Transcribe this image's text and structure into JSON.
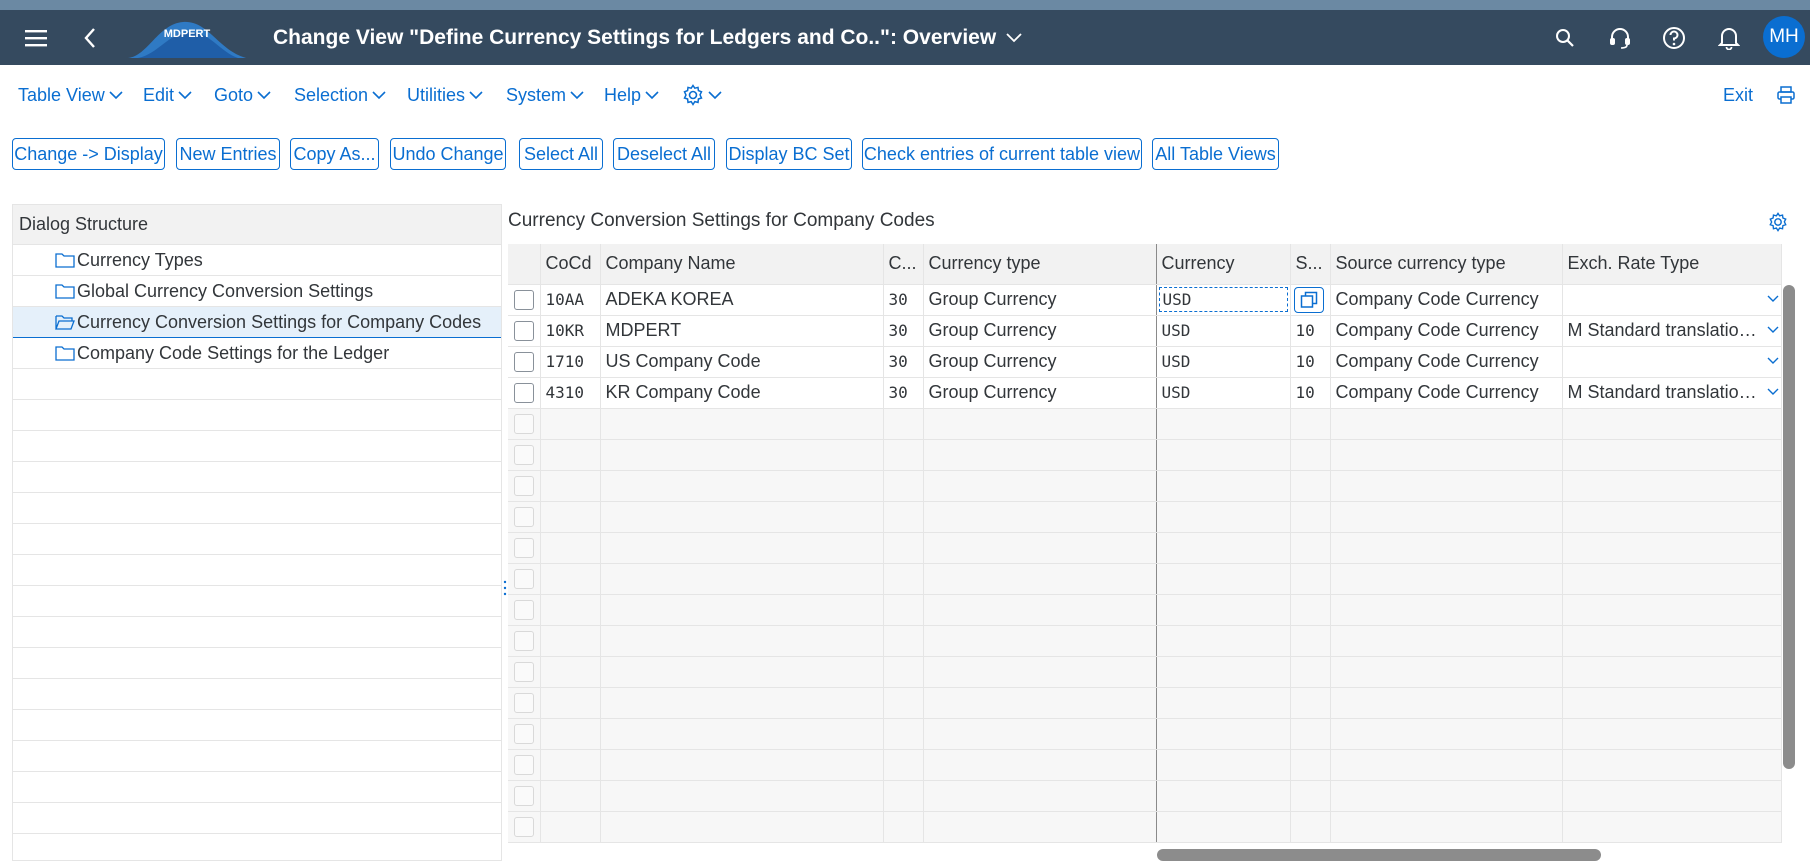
{
  "shell": {
    "title": "Change View \"Define Currency Settings for Ledgers and Co..\": Overview",
    "logo_text": "MDPERT",
    "avatar_initials": "MH",
    "icons": [
      "menu-icon",
      "back-icon",
      "title-chevron-down-icon",
      "search-icon",
      "support-icon",
      "help-icon",
      "notifications-icon"
    ]
  },
  "menu": {
    "items": [
      "Table View",
      "Edit",
      "Goto",
      "Selection",
      "Utilities",
      "System",
      "Help"
    ],
    "exit_label": "Exit"
  },
  "toolbar": {
    "buttons": [
      "Change -> Display",
      "New Entries",
      "Copy As...",
      "Undo Change",
      "Select All",
      "Deselect All",
      "Display BC Set",
      "Check entries of current table view",
      "All Table Views"
    ]
  },
  "dialog_structure": {
    "header": "Dialog Structure",
    "items": [
      {
        "label": "Currency Types",
        "selected": false
      },
      {
        "label": "Global Currency Conversion Settings",
        "selected": false
      },
      {
        "label": "Currency Conversion Settings for Company Codes",
        "selected": true
      },
      {
        "label": "Company Code Settings for the Ledger",
        "selected": false
      }
    ]
  },
  "table": {
    "title": "Currency Conversion Settings for Company Codes",
    "columns": [
      "CoCd",
      "Company Name",
      "C...",
      "Currency type",
      "Currency",
      "S...",
      "Source currency type",
      "Exch. Rate Type"
    ],
    "rows": [
      {
        "cocd": "10AA",
        "company_name": "ADEKA KOREA",
        "c": "30",
        "currency_type": "Group Currency",
        "currency": "USD",
        "s": "",
        "source_currency_type": "Company Code Currency",
        "exch_rate_type": ""
      },
      {
        "cocd": "10KR",
        "company_name": "MDPERT",
        "c": "30",
        "currency_type": "Group Currency",
        "currency": "USD",
        "s": "10",
        "source_currency_type": "Company Code Currency",
        "exch_rate_type": "M Standard translation..."
      },
      {
        "cocd": "1710",
        "company_name": "US Company Code",
        "c": "30",
        "currency_type": "Group Currency",
        "currency": "USD",
        "s": "10",
        "source_currency_type": "Company Code Currency",
        "exch_rate_type": ""
      },
      {
        "cocd": "4310",
        "company_name": "KR Company Code",
        "c": "30",
        "currency_type": "Group Currency",
        "currency": "USD",
        "s": "10",
        "source_currency_type": "Company Code Currency",
        "exch_rate_type": "M Standard translation..."
      }
    ]
  },
  "colors": {
    "shell_bg": "#354a5f",
    "accent": "#0a6ed1",
    "header_bg": "#f2f2f2"
  }
}
